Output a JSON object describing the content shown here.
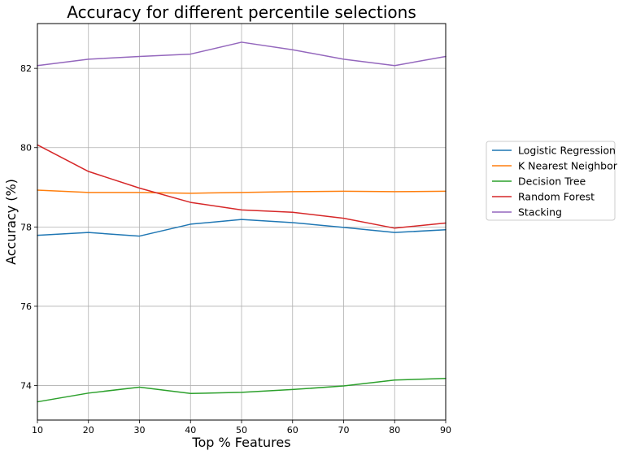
{
  "chart_data": {
    "type": "line",
    "title": "Accuracy for different percentile selections",
    "xlabel": "Top % Features",
    "ylabel": "Accuracy (%)",
    "x": [
      10,
      20,
      30,
      40,
      50,
      60,
      70,
      80,
      90
    ],
    "xlim": [
      10,
      90
    ],
    "ylim": [
      73.13,
      83.13
    ],
    "xticks": [
      10,
      20,
      30,
      40,
      50,
      60,
      70,
      80,
      90
    ],
    "yticks": [
      74,
      76,
      78,
      80,
      82
    ],
    "grid": true,
    "legend_position": "outside-right",
    "series": [
      {
        "name": "Logistic Regression",
        "color": "#1f77b4",
        "values": [
          77.79,
          77.86,
          77.77,
          78.07,
          78.19,
          78.11,
          77.99,
          77.86,
          77.93
        ]
      },
      {
        "name": "K Nearest Neighbor",
        "color": "#ff7f0e",
        "values": [
          78.93,
          78.87,
          78.87,
          78.85,
          78.87,
          78.89,
          78.9,
          78.89,
          78.9
        ]
      },
      {
        "name": "Decision Tree",
        "color": "#2ca02c",
        "values": [
          73.59,
          73.81,
          73.96,
          73.8,
          73.83,
          73.9,
          73.99,
          74.14,
          74.18
        ]
      },
      {
        "name": "Random Forest",
        "color": "#d62728",
        "values": [
          80.07,
          79.4,
          78.98,
          78.62,
          78.43,
          78.37,
          78.22,
          77.97,
          78.1
        ]
      },
      {
        "name": "Stacking",
        "color": "#9467bd",
        "values": [
          82.07,
          82.23,
          82.3,
          82.36,
          82.66,
          82.47,
          82.23,
          82.07,
          82.3
        ]
      }
    ]
  }
}
